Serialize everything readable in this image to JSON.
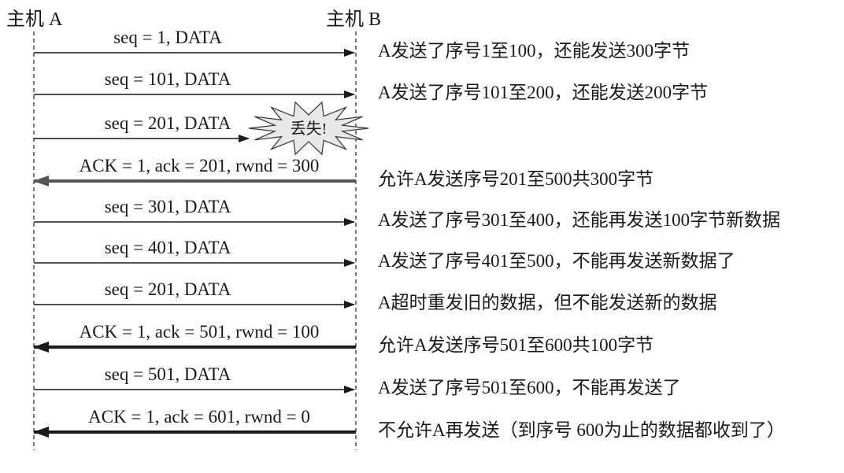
{
  "hosts": {
    "a": "主机 A",
    "b": "主机 B"
  },
  "messages": [
    {
      "label": "seq = 1, DATA",
      "direction": "A→B",
      "lost": false,
      "note": "A发送了序号1至100，还能发送300字节"
    },
    {
      "label": "seq = 101, DATA",
      "direction": "A→B",
      "lost": false,
      "note": "A发送了序号101至200，还能发送200字节"
    },
    {
      "label": "seq = 201, DATA",
      "direction": "A→B",
      "lost": true,
      "lost_text": "丢失!",
      "note": ""
    },
    {
      "label": "ACK = 1, ack = 201, rwnd = 300",
      "direction": "B→A",
      "lost": false,
      "note": "允许A发送序号201至500共300字节"
    },
    {
      "label": "seq = 301, DATA",
      "direction": "A→B",
      "lost": false,
      "note": "A发送了序号301至400，还能再发送100字节新数据"
    },
    {
      "label": "seq = 401, DATA",
      "direction": "A→B",
      "lost": false,
      "note": "A发送了序号401至500，不能再发送新数据了"
    },
    {
      "label": "seq = 201, DATA",
      "direction": "A→B",
      "lost": false,
      "note": "A超时重发旧的数据，但不能发送新的数据"
    },
    {
      "label": "ACK = 1, ack = 501, rwnd = 100",
      "direction": "B→A",
      "lost": false,
      "note": "允许A发送序号501至600共100字节"
    },
    {
      "label": "seq = 501, DATA",
      "direction": "A→B",
      "lost": false,
      "note": "A发送了序号501至600，不能再发送了"
    },
    {
      "label": "ACK = 1, ack = 601, rwnd = 0",
      "direction": "B→A",
      "lost": false,
      "note": "不允许A再发送（到序号 600为止的数据都收到了）"
    }
  ]
}
